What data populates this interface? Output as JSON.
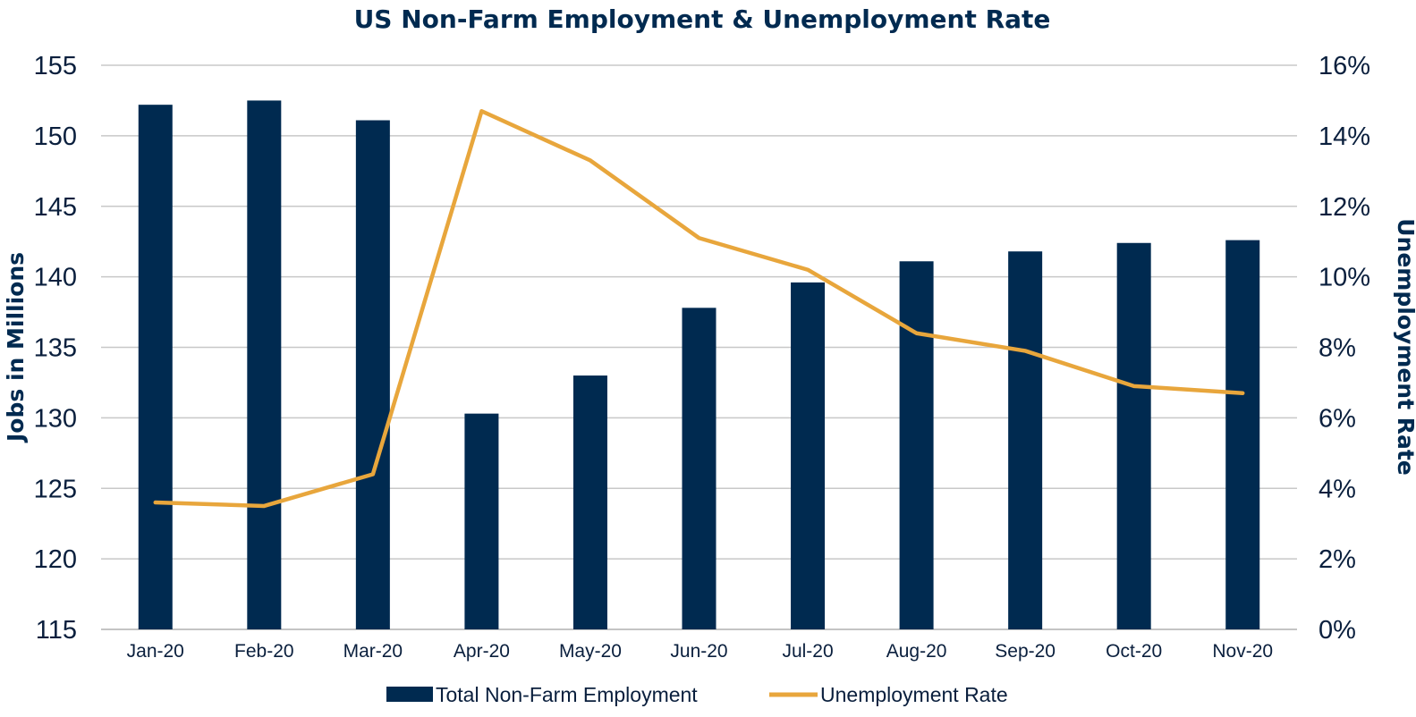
{
  "colors": {
    "bar": "#002A50",
    "line": "#E8A63C",
    "grid": "#C8C8C8",
    "text": "#0A1F3D"
  },
  "chart_data": {
    "type": "bar",
    "title": "US Non-Farm Employment & Unemployment Rate",
    "categories": [
      "Jan-20",
      "Feb-20",
      "Mar-20",
      "Apr-20",
      "May-20",
      "Jun-20",
      "Jul-20",
      "Aug-20",
      "Sep-20",
      "Oct-20",
      "Nov-20"
    ],
    "series": [
      {
        "name": "Total Non-Farm Employment",
        "type": "bar",
        "axis": "left",
        "values": [
          152.2,
          152.5,
          151.1,
          130.3,
          133.0,
          137.8,
          139.6,
          141.1,
          141.8,
          142.4,
          142.6
        ]
      },
      {
        "name": "Unemployment Rate",
        "type": "line",
        "axis": "right",
        "values": [
          3.6,
          3.5,
          4.4,
          14.7,
          13.3,
          11.1,
          10.2,
          8.4,
          7.9,
          6.9,
          6.7
        ]
      }
    ],
    "ylabel": "Jobs in Millions",
    "ylim": [
      115,
      155
    ],
    "yticks": [
      "115",
      "120",
      "125",
      "130",
      "135",
      "140",
      "145",
      "150",
      "155"
    ],
    "y2label": "Unemployment Rate",
    "y2lim": [
      0,
      16
    ],
    "y2ticks": [
      "0%",
      "2%",
      "4%",
      "6%",
      "8%",
      "10%",
      "12%",
      "14%",
      "16%"
    ],
    "grid": true,
    "legend": "bottom"
  }
}
